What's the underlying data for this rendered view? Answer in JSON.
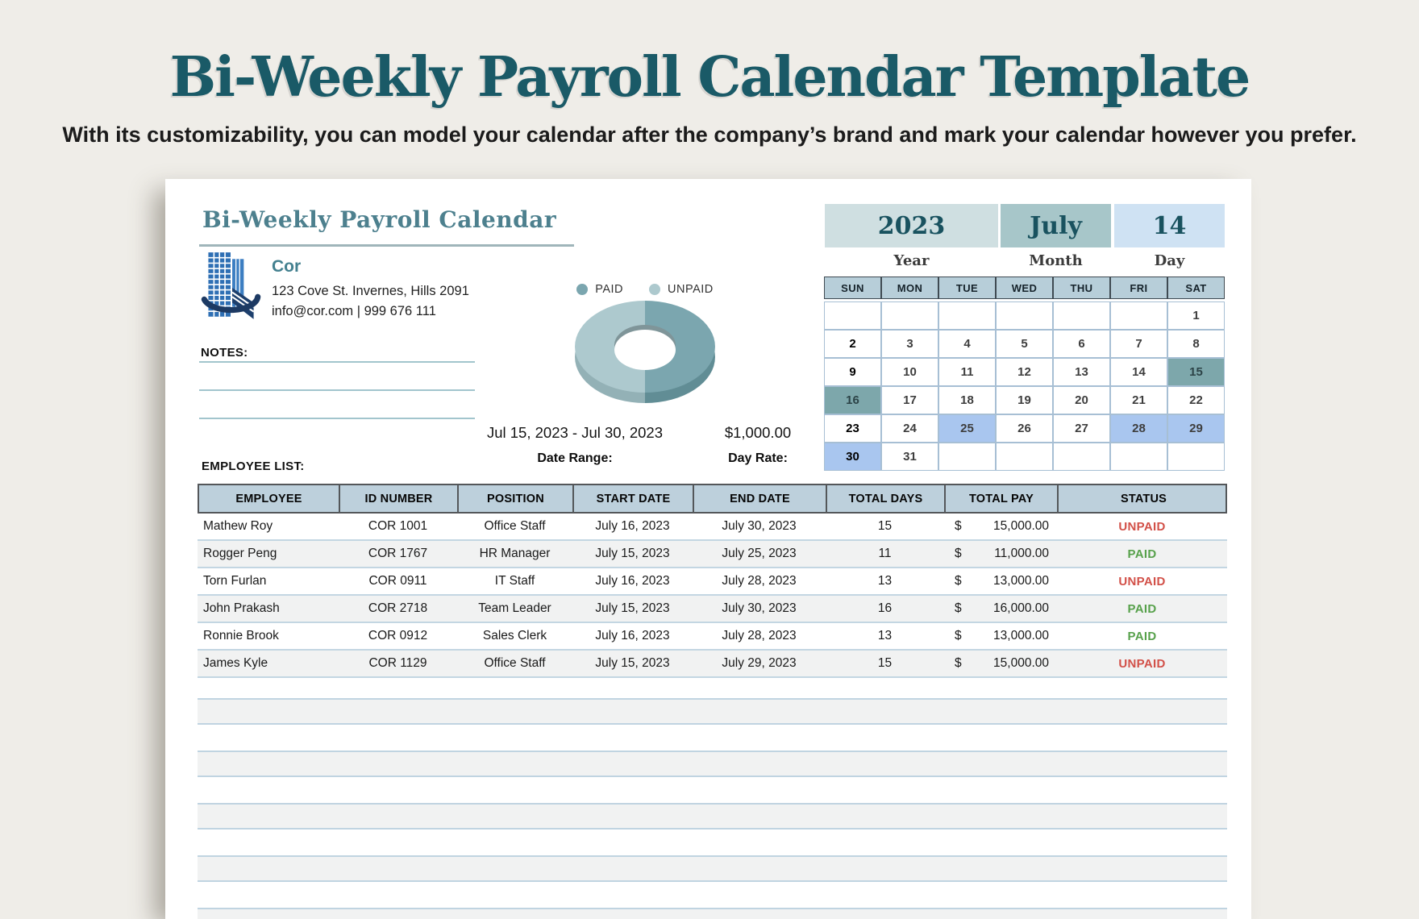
{
  "hero": {
    "title": "Bi-Weekly Payroll Calendar Template",
    "subtitle": "With its customizability, you can model your calendar after the company’s brand and mark your calendar however you prefer."
  },
  "doc": {
    "heading": "Bi-Weekly Payroll Calendar",
    "company": {
      "name": "Cor",
      "address": "123 Cove St. Invernes, Hills 2091",
      "contact": "info@cor.com | 999 676 111"
    },
    "notes_label": "NOTES:",
    "employee_list_label": "EMPLOYEE LIST:",
    "date_range_value": "Jul 15, 2023 - Jul 30, 2023",
    "date_range_label": "Date Range:",
    "day_rate_value": "$1,000.00",
    "day_rate_label": "Day Rate:"
  },
  "chart_data": {
    "type": "pie",
    "donut": true,
    "style": "3d",
    "legend_position": "top",
    "labels": [
      "PAID",
      "UNPAID"
    ],
    "values": [
      50,
      50
    ],
    "slices": [
      {
        "label": "PAID",
        "value": 50,
        "color": "#7ba6af",
        "side_color": "#618d95"
      },
      {
        "label": "UNPAID",
        "value": 50,
        "color": "#adc9ce",
        "side_color": "#93b1b6"
      }
    ]
  },
  "calendar": {
    "year": {
      "value": "2023",
      "label": "Year",
      "bg": "#cfdfe1"
    },
    "month": {
      "value": "July",
      "label": "Month",
      "bg": "#a7c6c9"
    },
    "day": {
      "value": "14",
      "label": "Day",
      "bg": "#cfe2f3"
    },
    "weekdays": [
      "SUN",
      "MON",
      "TUE",
      "WED",
      "THU",
      "FRI",
      "SAT"
    ],
    "weeks": [
      [
        "",
        "",
        "",
        "",
        "",
        "",
        "1"
      ],
      [
        "2",
        "3",
        "4",
        "5",
        "6",
        "7",
        "8"
      ],
      [
        "9",
        "10",
        "11",
        "12",
        "13",
        "14",
        "15"
      ],
      [
        "16",
        "17",
        "18",
        "19",
        "20",
        "21",
        "22"
      ],
      [
        "23",
        "24",
        "25",
        "26",
        "27",
        "28",
        "29"
      ],
      [
        "30",
        "31",
        "",
        "",
        "",
        "",
        ""
      ]
    ],
    "highlights": {
      "15": "teal",
      "16": "teal",
      "25": "blue",
      "28": "blue",
      "29": "blue",
      "30": "blue"
    },
    "highlight_colors": {
      "teal": "#7da7ab",
      "blue": "#a9c6ef"
    }
  },
  "table": {
    "headers": [
      "EMPLOYEE",
      "ID NUMBER",
      "POSITION",
      "START DATE",
      "END DATE",
      "TOTAL DAYS",
      "TOTAL PAY",
      "STATUS"
    ],
    "rows": [
      {
        "employee": "Mathew Roy",
        "id": "COR 1001",
        "position": "Office Staff",
        "start": "July 16, 2023",
        "end": "July 30, 2023",
        "days": "15",
        "currency": "$",
        "pay": "15,000.00",
        "status": "UNPAID"
      },
      {
        "employee": "Rogger Peng",
        "id": "COR 1767",
        "position": "HR Manager",
        "start": "July 15, 2023",
        "end": "July 25, 2023",
        "days": "11",
        "currency": "$",
        "pay": "11,000.00",
        "status": "PAID"
      },
      {
        "employee": "Torn Furlan",
        "id": "COR 0911",
        "position": "IT Staff",
        "start": "July 16, 2023",
        "end": "July 28, 2023",
        "days": "13",
        "currency": "$",
        "pay": "13,000.00",
        "status": "UNPAID"
      },
      {
        "employee": "John Prakash",
        "id": "COR 2718",
        "position": "Team Leader",
        "start": "July 15, 2023",
        "end": "July 30, 2023",
        "days": "16",
        "currency": "$",
        "pay": "16,000.00",
        "status": "PAID"
      },
      {
        "employee": "Ronnie Brook",
        "id": "COR 0912",
        "position": "Sales Clerk",
        "start": "July 16, 2023",
        "end": "July 28, 2023",
        "days": "13",
        "currency": "$",
        "pay": "13,000.00",
        "status": "PAID"
      },
      {
        "employee": "James Kyle",
        "id": "COR 1129",
        "position": "Office Staff",
        "start": "July 15, 2023",
        "end": "July 29, 2023",
        "days": "15",
        "currency": "$",
        "pay": "15,000.00",
        "status": "UNPAID"
      }
    ],
    "status_colors": {
      "PAID": "#57a14b",
      "UNPAID": "#d25048"
    },
    "empty_rows": 5
  },
  "colors": {
    "hero_title": "#1a5a67",
    "doc_heading": "#4d808e",
    "paid_green": "#57a14b",
    "unpaid_red": "#d25048"
  }
}
